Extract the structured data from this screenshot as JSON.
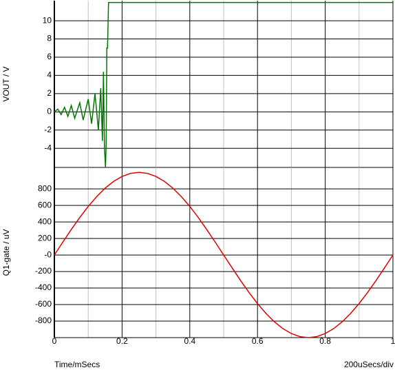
{
  "chart_data": [
    {
      "type": "line",
      "y_label": "VOUT / V",
      "x": [
        0,
        0.01,
        0.02,
        0.03,
        0.04,
        0.05,
        0.06,
        0.075,
        0.085,
        0.1,
        0.11,
        0.12,
        0.13,
        0.137,
        0.142,
        0.145,
        0.148,
        0.151,
        0.153,
        0.155,
        0.157,
        0.16,
        1
      ],
      "series": [
        {
          "color": "#007700",
          "values": [
            0,
            0.3,
            -0.3,
            0.5,
            -0.5,
            0.7,
            -0.7,
            1.0,
            -0.9,
            1.4,
            -1.3,
            2.0,
            -2.0,
            2.6,
            -3.2,
            4.4,
            -4.0,
            -6.1,
            -3.5,
            7.0,
            7.0,
            12,
            12
          ]
        }
      ],
      "xlim": [
        0,
        1
      ],
      "ylim": [
        -6.1,
        12.2
      ],
      "yticks": [
        -4,
        -2,
        0,
        2,
        4,
        6,
        8,
        10
      ],
      "xgrid": [
        0.2,
        0.4,
        0.6,
        0.8,
        1
      ],
      "xminorgrid": [
        0.1,
        0.3,
        0.5,
        0.7,
        0.9
      ]
    },
    {
      "type": "line",
      "y_label": "Q1-gate / uV",
      "x_label": "Time/mSecs",
      "annotation": "200uSecs/div",
      "x": [
        0,
        0.025,
        0.05,
        0.075,
        0.1,
        0.125,
        0.15,
        0.175,
        0.2,
        0.225,
        0.25,
        0.275,
        0.3,
        0.325,
        0.35,
        0.375,
        0.4,
        0.425,
        0.45,
        0.475,
        0.5,
        0.525,
        0.55,
        0.575,
        0.6,
        0.625,
        0.65,
        0.675,
        0.7,
        0.725,
        0.75,
        0.775,
        0.8,
        0.825,
        0.85,
        0.875,
        0.9,
        0.925,
        0.95,
        0.975,
        1
      ],
      "series": [
        {
          "color": "#dd0000",
          "values": [
            0,
            156,
            309,
            454,
            588,
            707,
            809,
            891,
            951,
            988,
            1000,
            988,
            951,
            891,
            809,
            707,
            588,
            454,
            309,
            156,
            0,
            -156,
            -309,
            -454,
            -588,
            -707,
            -809,
            -891,
            -951,
            -988,
            -1000,
            -988,
            -951,
            -891,
            -809,
            -707,
            -588,
            -454,
            -309,
            -156,
            0
          ]
        }
      ],
      "xlim": [
        0,
        1
      ],
      "ylim": [
        -1000,
        1060
      ],
      "yticks": [
        -800,
        -600,
        -400,
        -200,
        {
          "value": 0,
          "label": "-0"
        },
        200,
        400,
        600,
        800
      ],
      "xticks": [
        0,
        0.2,
        0.4,
        0.6,
        0.8,
        1
      ],
      "xgrid": [
        0.2,
        0.4,
        0.6,
        0.8,
        1
      ],
      "xminorgrid": [
        0.1,
        0.3,
        0.5,
        0.7,
        0.9
      ]
    }
  ]
}
